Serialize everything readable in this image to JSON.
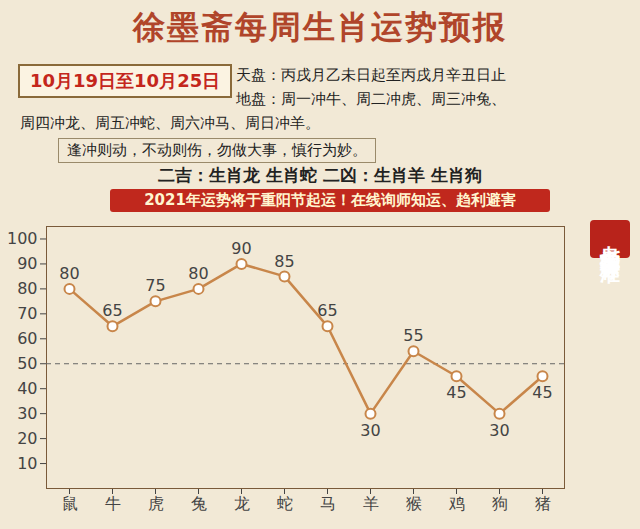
{
  "chart_data": {
    "type": "line",
    "title": "徐墨斋每周生肖运势预报",
    "categories": [
      "鼠",
      "牛",
      "虎",
      "兔",
      "龙",
      "蛇",
      "马",
      "羊",
      "猴",
      "鸡",
      "狗",
      "猪"
    ],
    "values": [
      80,
      65,
      75,
      80,
      90,
      85,
      65,
      30,
      55,
      45,
      30,
      45
    ],
    "color": "#c8864a",
    "marker": "circle",
    "data_labels": true,
    "grid": false,
    "ylim": [
      0,
      105
    ],
    "yticks": [
      10,
      20,
      30,
      40,
      50,
      60,
      70,
      80,
      90,
      100
    ],
    "reference_lines": [
      {
        "y": 50,
        "line_style": "dashed"
      }
    ]
  },
  "header": {
    "date": "10月19日至10月25日",
    "info": [
      "天盘：丙戌月乙未日起至丙戌月辛丑日止",
      "地盘：周一冲牛、周二冲虎、周三冲兔、",
      "周四冲龙、周五冲蛇、周六冲马、周日冲羊。"
    ],
    "advice": "逢冲则动，不动则伤，勿做大事，慎行为妙。",
    "fortune": "二吉：生肖龙 生肖蛇 二凶：生肖羊 生肖狗",
    "banner": "2021年运势将于重阳节起运！在线询师知运、趋利避害",
    "side_label": "七星堂吉凶评分标准"
  }
}
